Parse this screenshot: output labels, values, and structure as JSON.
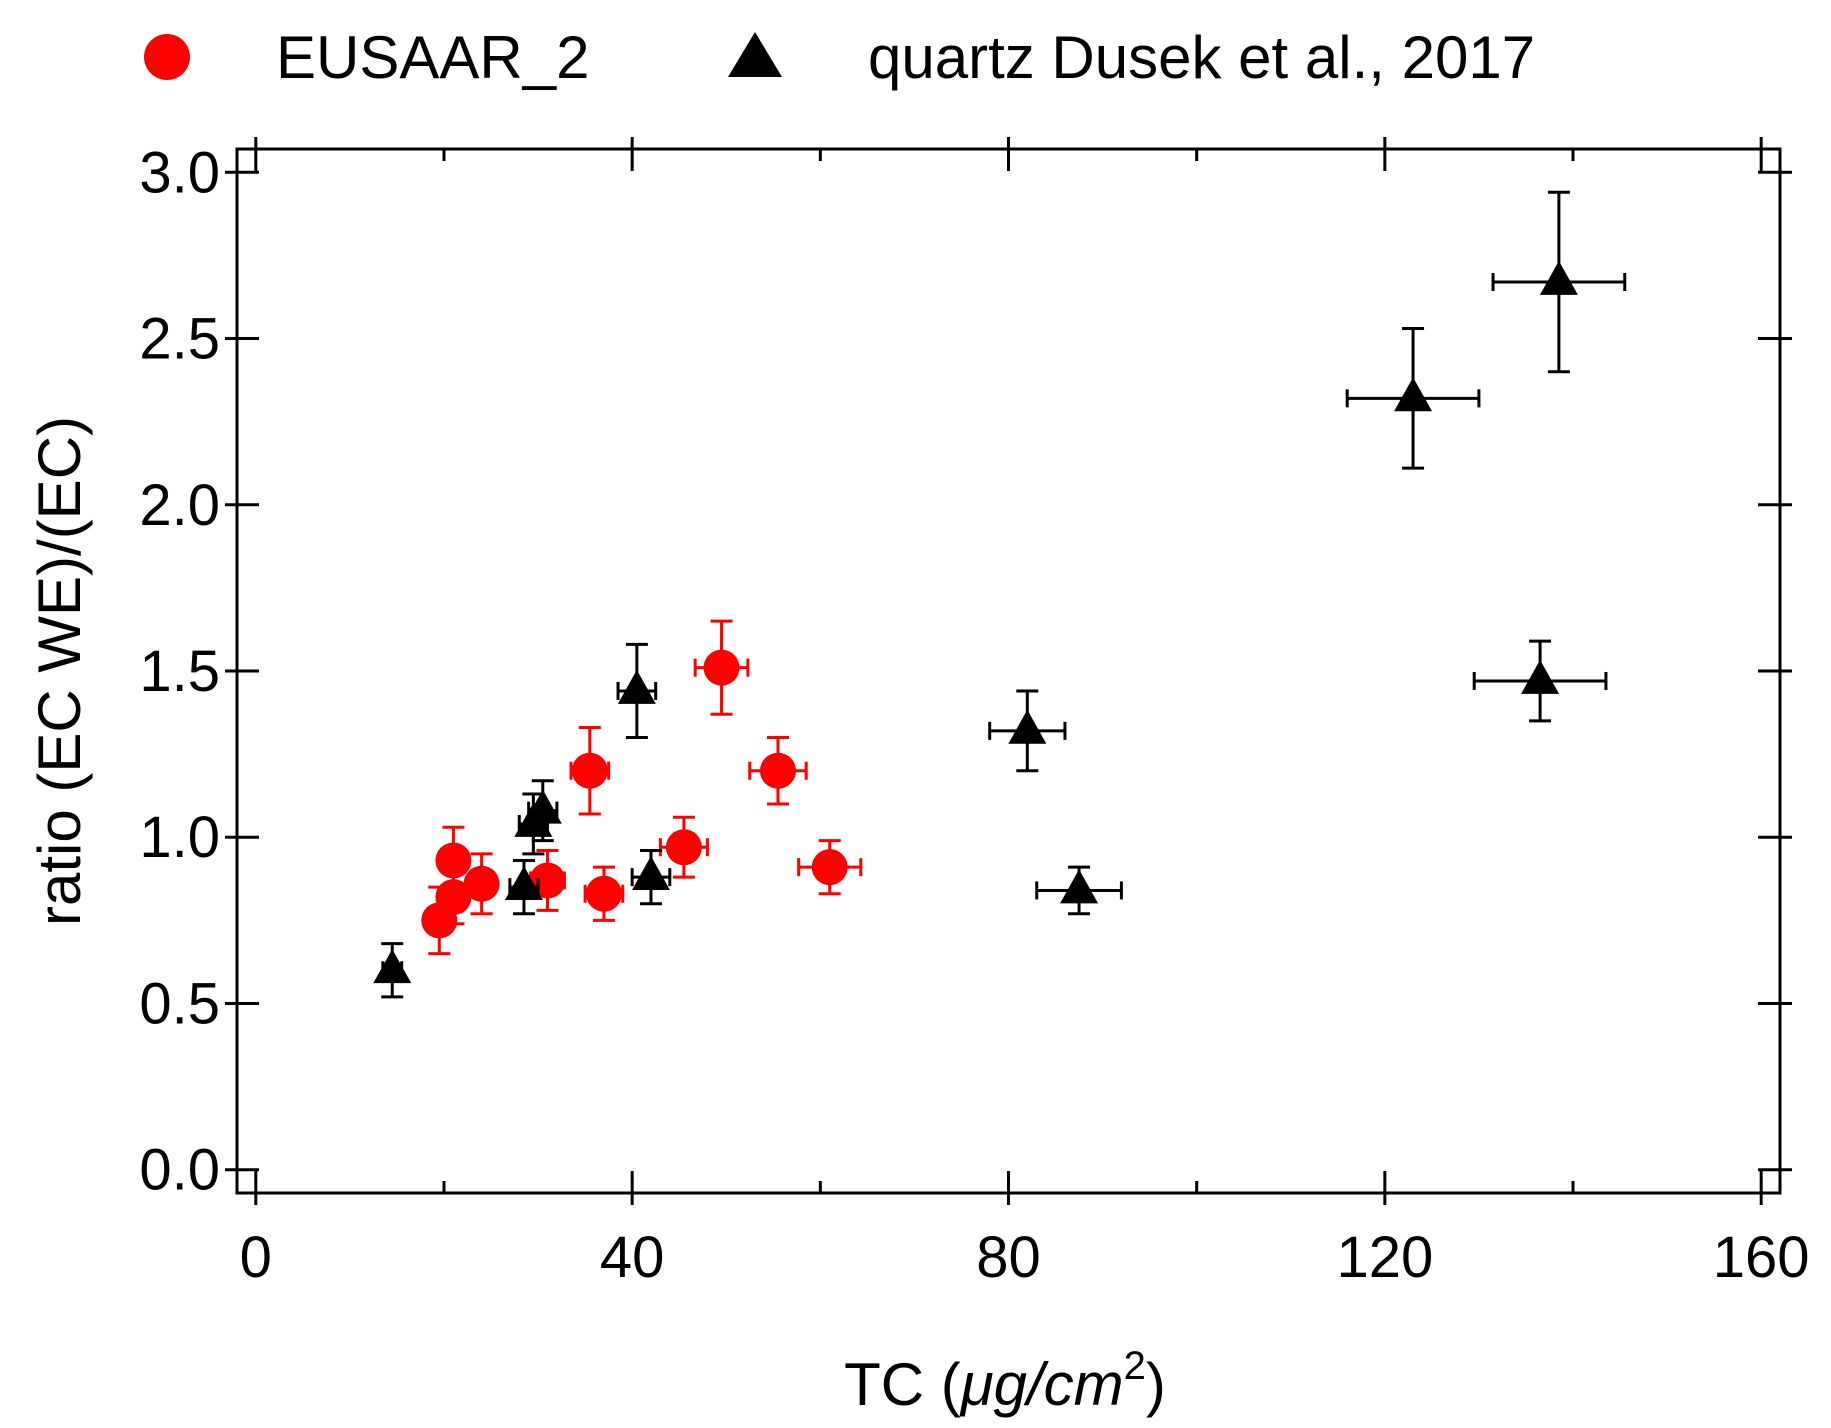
{
  "chart_data": {
    "type": "scatter",
    "title": "",
    "xlabel": "TC (μg/cm²)",
    "xlabel_main": "TC (",
    "xlabel_unit": "μg/cm",
    "xlabel_sup": "2",
    "xlabel_close": ")",
    "ylabel": "ratio (EC WE)/(EC)",
    "xlim": [
      -2,
      162
    ],
    "ylim": [
      -0.07,
      3.07
    ],
    "xticks": [
      0,
      40,
      80,
      120,
      160
    ],
    "xtick_labels": [
      "0",
      "40",
      "80",
      "120",
      "160"
    ],
    "yticks": [
      0.0,
      0.5,
      1.0,
      1.5,
      2.0,
      2.5,
      3.0
    ],
    "ytick_labels": [
      "0.0",
      "0.5",
      "1.0",
      "1.5",
      "2.0",
      "2.5",
      "3.0"
    ],
    "legend_position": "top",
    "series": [
      {
        "name": "EUSAAR_2",
        "marker": "circle",
        "color": "#ff0000",
        "points": [
          {
            "x": 19.5,
            "y": 0.75,
            "xerr": 1.0,
            "yerr": 0.1
          },
          {
            "x": 21.0,
            "y": 0.82,
            "xerr": 1.2,
            "yerr": 0.08
          },
          {
            "x": 21.0,
            "y": 0.93,
            "xerr": 1.2,
            "yerr": 0.1
          },
          {
            "x": 24.0,
            "y": 0.86,
            "xerr": 1.4,
            "yerr": 0.09
          },
          {
            "x": 31.0,
            "y": 0.87,
            "xerr": 1.8,
            "yerr": 0.09
          },
          {
            "x": 35.5,
            "y": 1.2,
            "xerr": 2.0,
            "yerr": 0.13
          },
          {
            "x": 37.0,
            "y": 0.83,
            "xerr": 2.0,
            "yerr": 0.08
          },
          {
            "x": 45.5,
            "y": 0.97,
            "xerr": 2.5,
            "yerr": 0.09
          },
          {
            "x": 49.5,
            "y": 1.51,
            "xerr": 2.8,
            "yerr": 0.14
          },
          {
            "x": 55.5,
            "y": 1.2,
            "xerr": 3.0,
            "yerr": 0.1
          },
          {
            "x": 61.0,
            "y": 0.91,
            "xerr": 3.3,
            "yerr": 0.08
          }
        ]
      },
      {
        "name": "quartz Dusek et al., 2017",
        "marker": "triangle",
        "color": "#000000",
        "points": [
          {
            "x": 14.5,
            "y": 0.6,
            "xerr": 1.0,
            "yerr": 0.08
          },
          {
            "x": 28.5,
            "y": 0.85,
            "xerr": 1.5,
            "yerr": 0.08
          },
          {
            "x": 29.5,
            "y": 1.04,
            "xerr": 1.5,
            "yerr": 0.09
          },
          {
            "x": 30.5,
            "y": 1.08,
            "xerr": 1.5,
            "yerr": 0.09
          },
          {
            "x": 40.5,
            "y": 1.44,
            "xerr": 2.0,
            "yerr": 0.14
          },
          {
            "x": 42.0,
            "y": 0.88,
            "xerr": 2.0,
            "yerr": 0.08
          },
          {
            "x": 82.0,
            "y": 1.32,
            "xerr": 4.0,
            "yerr": 0.12
          },
          {
            "x": 87.5,
            "y": 0.84,
            "xerr": 4.5,
            "yerr": 0.07
          },
          {
            "x": 123.0,
            "y": 2.32,
            "xerr": 7.0,
            "yerr": 0.21
          },
          {
            "x": 136.5,
            "y": 1.47,
            "xerr": 7.0,
            "yerr": 0.12
          },
          {
            "x": 138.5,
            "y": 2.67,
            "xerr": 7.0,
            "yerr": 0.27
          }
        ]
      }
    ]
  }
}
